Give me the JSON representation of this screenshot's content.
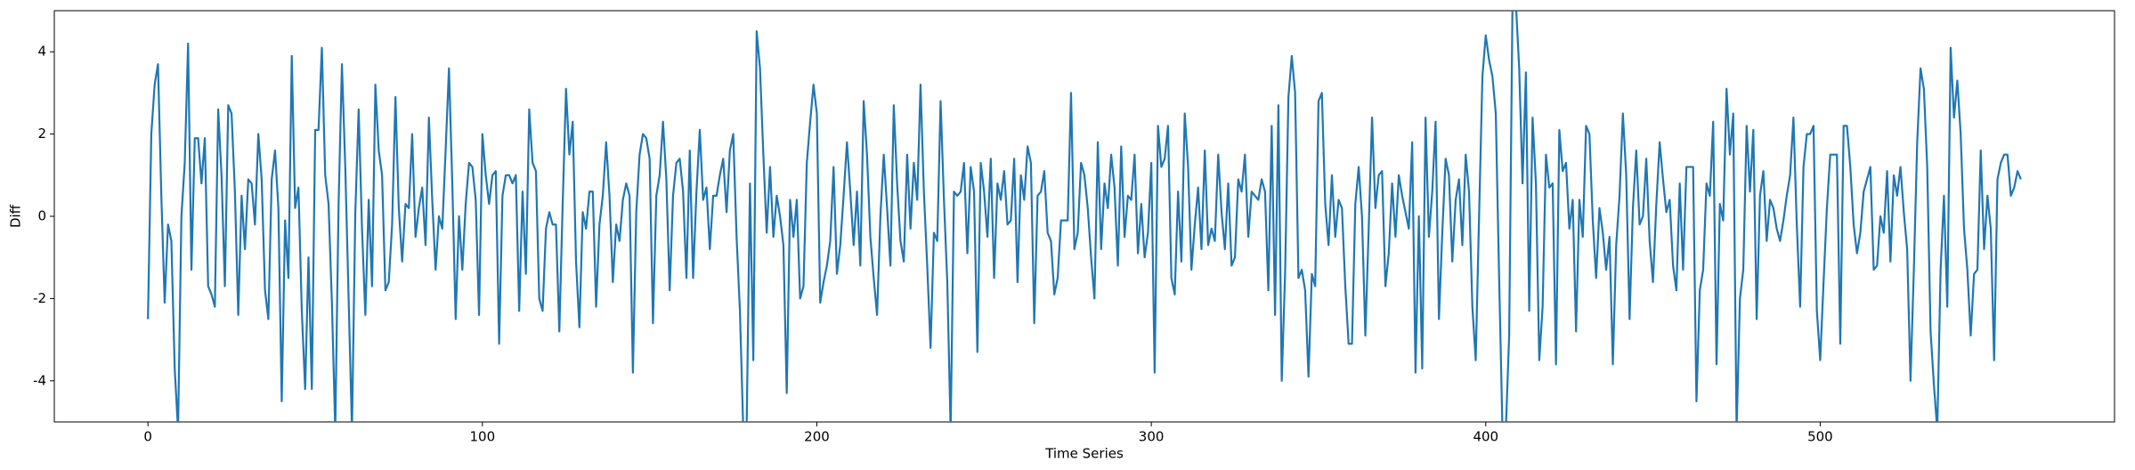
{
  "chart_data": {
    "type": "line",
    "x_label": "Time Series",
    "y_label": "Diff",
    "color": "#1f77b4",
    "xlim": [
      -28,
      588
    ],
    "ylim": [
      -5,
      5
    ],
    "xticks": [
      0,
      100,
      200,
      300,
      400,
      500
    ],
    "yticks": [
      -4,
      -2,
      0,
      2,
      4
    ],
    "grid": false,
    "values": [
      -2.5,
      2,
      3.2,
      3.7,
      0.5,
      -2.1,
      -0.2,
      -0.6,
      -3.7,
      -5.2,
      0,
      1.3,
      4.2,
      -1.3,
      1.9,
      1.9,
      0.8,
      1.9,
      -1.7,
      -1.9,
      -2.2,
      2.6,
      1,
      -1.7,
      2.7,
      2.5,
      0.6,
      -2.4,
      0.5,
      -0.8,
      0.9,
      0.8,
      -0.2,
      2,
      0.9,
      -1.8,
      -2.5,
      0.9,
      1.6,
      0.2,
      -4.5,
      -0.1,
      -1.5,
      3.9,
      0.2,
      0.7,
      -2.3,
      -4.2,
      -1,
      -4.2,
      2.1,
      2.1,
      4.1,
      1,
      0.3,
      -2.1,
      -5.2,
      0.3,
      3.7,
      1.2,
      -2,
      -5.2,
      0.1,
      2.6,
      -0.3,
      -2.4,
      0.4,
      -1.7,
      3.2,
      1.6,
      1,
      -1.8,
      -1.6,
      -0.2,
      2.9,
      0.2,
      -1.1,
      0.3,
      0.2,
      2,
      -0.5,
      0.2,
      0.7,
      -0.7,
      2.4,
      0.4,
      -1.3,
      0,
      -0.3,
      1.6,
      3.6,
      0.8,
      -2.5,
      0,
      -1.3,
      0.3,
      1.3,
      1.2,
      0.4,
      -2.4,
      2,
      1,
      0.3,
      1,
      1.1,
      -3.1,
      0.5,
      1,
      1,
      0.8,
      1,
      -2.3,
      0.6,
      -1.4,
      2.6,
      1.3,
      1.1,
      -2,
      -2.3,
      -0.3,
      0.1,
      -0.2,
      -0.2,
      -2.8,
      0.3,
      3.1,
      1.5,
      2.3,
      -1.1,
      -2.7,
      0.1,
      -0.3,
      0.6,
      0.6,
      -2.2,
      -0.2,
      0.5,
      1.8,
      0.5,
      -1.6,
      -0.2,
      -0.6,
      0.4,
      0.8,
      0.5,
      -3.8,
      0.1,
      1.5,
      2,
      1.9,
      1.4,
      -2.6,
      0.5,
      1,
      2.3,
      0.9,
      -1.8,
      0.5,
      1.3,
      1.4,
      0.6,
      -1.5,
      1.6,
      -1.5,
      0.6,
      2.1,
      0.4,
      0.7,
      -0.8,
      0.5,
      0.5,
      1,
      1.4,
      0.1,
      1.6,
      2,
      -0.5,
      -2.3,
      -5.2,
      -5.2,
      0.8,
      -3.5,
      4.5,
      3.6,
      1.5,
      -0.4,
      1.2,
      -0.5,
      0.5,
      0,
      -0.7,
      -4.3,
      0.4,
      -0.5,
      0.4,
      -2,
      -1.7,
      1.3,
      2.3,
      3.2,
      2.5,
      -2.1,
      -1.6,
      -1.2,
      -0.6,
      1.2,
      -1.4,
      -0.7,
      0.5,
      1.8,
      0.6,
      -0.7,
      0.6,
      -1.2,
      2.8,
      1.5,
      -0.5,
      -1.5,
      -2.4,
      0,
      1.5,
      0.2,
      -1.2,
      2.7,
      0.8,
      -0.6,
      -1.1,
      1.5,
      -0.3,
      1.3,
      0.4,
      3.2,
      0.6,
      -1.2,
      -3.2,
      -0.4,
      -0.6,
      2.8,
      0.4,
      -1.6,
      -5.2,
      0.6,
      0.5,
      0.6,
      1.3,
      -0.9,
      1.2,
      0.6,
      -3.3,
      1.3,
      0.6,
      -0.5,
      1.4,
      -1.5,
      0.8,
      0.4,
      1.1,
      -0.2,
      -0.1,
      1.4,
      -1.6,
      1,
      0.4,
      1.7,
      1.3,
      -2.6,
      0.5,
      0.6,
      1.1,
      -0.4,
      -0.6,
      -1.9,
      -1.5,
      -0.1,
      -0.1,
      -0.1,
      3,
      -0.8,
      -0.4,
      1.3,
      1,
      0.2,
      -1,
      -2,
      1.8,
      -0.8,
      0.8,
      0.2,
      1.5,
      0.7,
      -1.2,
      1.7,
      -0.5,
      0.5,
      0.4,
      1.5,
      -0.9,
      0.3,
      -1,
      -0.4,
      1.3,
      -3.8,
      2.2,
      1.2,
      1.4,
      2.2,
      -1.5,
      -1.9,
      0.6,
      -1.1,
      2.5,
      1.2,
      -1.3,
      -0.2,
      0.7,
      -0.8,
      1.6,
      -0.7,
      -0.3,
      -0.6,
      1.5,
      0.1,
      -0.8,
      0.8,
      -1.2,
      -1,
      0.9,
      0.6,
      1.5,
      -0.5,
      0.6,
      0.5,
      0.4,
      0.9,
      0.6,
      -1.8,
      2.2,
      -2.4,
      2.7,
      -4,
      -1.4,
      2.9,
      3.9,
      3,
      -1.5,
      -1.3,
      -1.8,
      -3.9,
      -1.4,
      -1.7,
      2.8,
      3,
      0.3,
      -0.7,
      1,
      -0.5,
      0.4,
      0.2,
      -1.7,
      -3.1,
      -3.1,
      0.3,
      1.2,
      0,
      -2.9,
      -0.3,
      2.4,
      0.2,
      1,
      1.1,
      -1.7,
      -0.9,
      0.8,
      -0.5,
      1,
      0.5,
      0.1,
      -0.3,
      1.8,
      -3.8,
      0,
      -3.7,
      2.4,
      -0.5,
      0.6,
      2.3,
      -2.5,
      -0.4,
      1.4,
      1,
      -1.1,
      0.4,
      0.9,
      -0.7,
      1.5,
      0.6,
      -2.2,
      -3.5,
      0,
      3.4,
      4.4,
      3.8,
      3.4,
      2.5,
      -1.5,
      -5.2,
      -5.2,
      -2.9,
      5.2,
      5.2,
      3.6,
      0.8,
      3.5,
      -2.3,
      2.4,
      0.8,
      -3.5,
      -2.2,
      1.5,
      0.7,
      0.8,
      -3.6,
      2.1,
      1.1,
      1.3,
      -0.3,
      0.4,
      -2.8,
      0.4,
      -0.5,
      2.2,
      2,
      -0.1,
      -1.5,
      0.2,
      -0.4,
      -1.3,
      -0.5,
      -3.6,
      -0.7,
      0.5,
      2.5,
      1,
      -2.5,
      0.2,
      1.6,
      -0.2,
      0,
      1.4,
      -0.6,
      -1.6,
      0.3,
      1.8,
      0.9,
      0.1,
      0.4,
      -1.2,
      -1.8,
      0.8,
      -1.3,
      1.2,
      1.2,
      1.2,
      -4.5,
      -1.8,
      -1.3,
      0.8,
      0.5,
      2.3,
      -3.6,
      0.3,
      -0.1,
      3.1,
      1.5,
      2.5,
      -5.2,
      -2,
      -1.3,
      2.2,
      0.6,
      2.1,
      -2.5,
      0.5,
      1.1,
      -0.6,
      0.4,
      0.2,
      -0.3,
      -0.6,
      -0.1,
      0.5,
      1,
      2.4,
      -0.2,
      -2.2,
      1.2,
      2,
      2,
      2.2,
      -2.3,
      -3.5,
      -1.6,
      0.2,
      1.5,
      1.5,
      1.5,
      -3.1,
      2.2,
      2.2,
      1.2,
      -0.2,
      -0.9,
      -0.4,
      0.6,
      0.9,
      1.2,
      -1.3,
      -1.2,
      0,
      -0.4,
      1.1,
      -1.1,
      1,
      0.5,
      1.2,
      0.1,
      -0.8,
      -4,
      -1.3,
      1.8,
      3.6,
      3.1,
      1.2,
      -2.8,
      -4.1,
      -5.2,
      -1.3,
      0.5,
      -2.2,
      4.1,
      2.4,
      3.3,
      2,
      -0.3,
      -1.3,
      -2.9,
      -1.4,
      -1.3,
      1.6,
      -0.8,
      0.5,
      -0.3,
      -3.5,
      0.9,
      1.3,
      1.5,
      1.5,
      0.5,
      0.7,
      1.1,
      0.9
    ]
  }
}
